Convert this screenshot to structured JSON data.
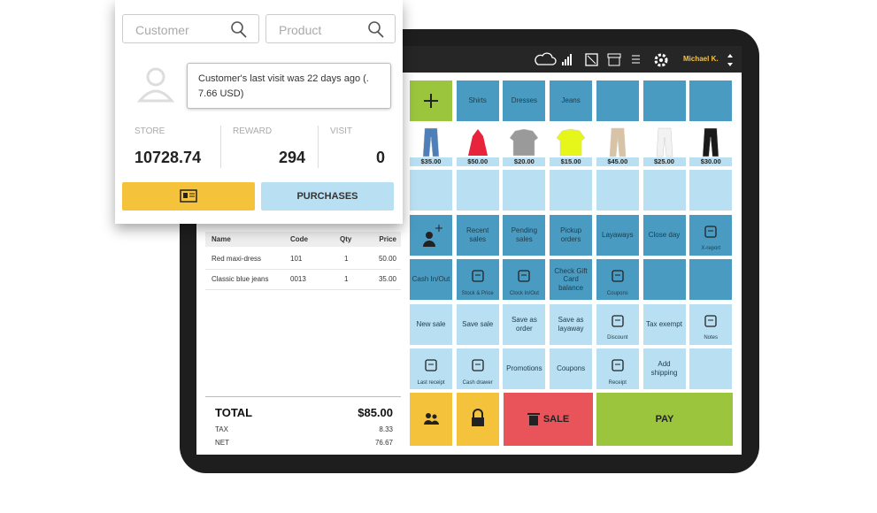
{
  "search": {
    "customer_placeholder": "Customer",
    "product_placeholder": "Product"
  },
  "tooltip": "Customer's last visit was 22 days ago (. 7.66 USD)",
  "stats": [
    {
      "label": "STORE",
      "value": "10728.74"
    },
    {
      "label": "REWARD",
      "value": "294"
    },
    {
      "label": "VISIT",
      "value": "0"
    }
  ],
  "purchases_button": "PURCHASES",
  "user": "Michael K.",
  "cart": {
    "columns": [
      "Name",
      "Code",
      "Qty",
      "Price"
    ],
    "rows": [
      [
        "Red maxi-dress",
        "101",
        "1",
        "50.00"
      ],
      [
        "Classic blue jeans",
        "0013",
        "1",
        "35.00"
      ]
    ]
  },
  "totals": {
    "total_label": "TOTAL",
    "total": "$85.00",
    "tax_label": "TAX",
    "tax": "8.33",
    "net_label": "NET",
    "net": "76.67"
  },
  "grid": {
    "rows": [
      [
        null,
        "Shirts",
        "Dresses",
        "Jeans",
        null,
        null,
        null
      ],
      [
        "$35.00",
        "$50.00",
        "$20.00",
        "$15.00",
        "$45.00",
        "$25.00",
        "$30.00"
      ],
      [
        null,
        null,
        null,
        null,
        null,
        null,
        null
      ],
      [
        null,
        "Recent sales",
        "Pending sales",
        "Pickup orders",
        "Layaways",
        "Close day",
        "X-report"
      ],
      [
        "Cash In/Out",
        "Stock & Price",
        "Clock In/Out",
        "Check Gift Card balance",
        "Coupons",
        null,
        null
      ],
      [
        "New sale",
        "Save sale",
        "Save as order",
        "Save as layaway",
        "Discount",
        "Tax exempt",
        "Notes"
      ],
      [
        "Last receipt",
        "Cash drawer",
        "Promotions",
        "Coupons",
        "Receipt",
        "Add shipping",
        null
      ]
    ]
  },
  "sale_button": "SALE",
  "pay_button": "PAY"
}
